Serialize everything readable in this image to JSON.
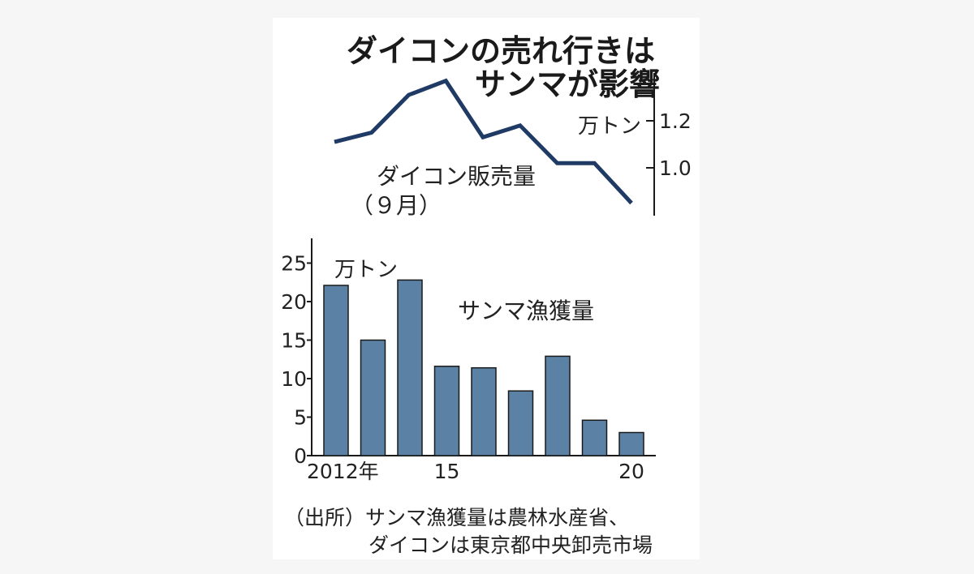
{
  "title": {
    "line1": "ダイコンの売れ行きは",
    "line2": "サンマが影響"
  },
  "colors": {
    "line": "#1f3a64",
    "bar": "#5b82a5",
    "bar_stroke": "#1a1a1a",
    "axis": "#1a1a1a"
  },
  "chart_data": [
    {
      "type": "line",
      "title": "ダイコン販売量",
      "subtitle": "（９月）",
      "unit": "万トン",
      "x": [
        2012,
        2013,
        2014,
        2015,
        2016,
        2017,
        2018,
        2019,
        2020
      ],
      "values": [
        1.11,
        1.15,
        1.31,
        1.37,
        1.13,
        1.18,
        1.02,
        1.02,
        0.85
      ],
      "ylim": [
        0.8,
        1.4
      ],
      "yticks": [
        1.0,
        1.2
      ],
      "ytick_labels": [
        "1.0",
        "1.2"
      ],
      "axis_position": "right",
      "grid": false
    },
    {
      "type": "bar",
      "title": "サンマ漁獲量",
      "unit": "万トン",
      "categories": [
        2012,
        2013,
        2014,
        2015,
        2016,
        2017,
        2018,
        2019,
        2020
      ],
      "values": [
        22.1,
        15.0,
        22.8,
        11.6,
        11.4,
        8.4,
        12.9,
        4.6,
        3.0
      ],
      "ylim": [
        0,
        27
      ],
      "yticks": [
        0,
        5,
        10,
        15,
        20,
        25
      ],
      "ytick_labels": [
        "0",
        "5",
        "10",
        "15",
        "20",
        "25"
      ],
      "xtick_labels": [
        {
          "at": 2012,
          "label": "2012年"
        },
        {
          "at": 2015,
          "label": "15"
        },
        {
          "at": 2020,
          "label": "20"
        }
      ],
      "grid": false
    }
  ],
  "source": {
    "line1": "（出所）サンマ漁獲量は農林水産省、",
    "line2": "ダイコンは東京都中央卸売市場"
  }
}
